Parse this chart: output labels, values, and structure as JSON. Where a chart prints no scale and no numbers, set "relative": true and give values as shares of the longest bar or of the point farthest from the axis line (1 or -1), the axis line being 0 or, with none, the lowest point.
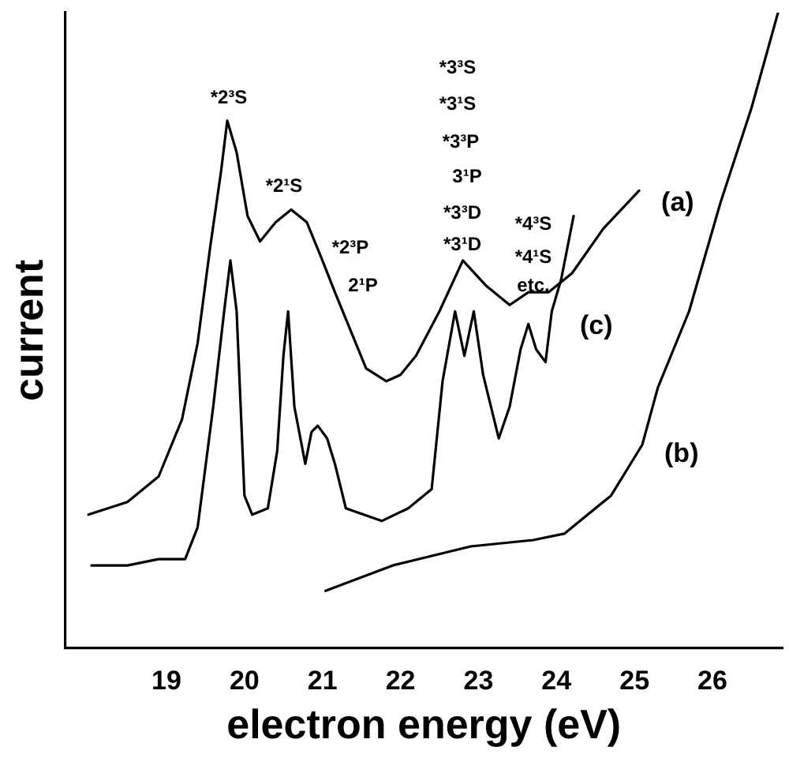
{
  "chart_data": {
    "type": "line",
    "xlabel": "electron energy (eV)",
    "ylabel": "current",
    "relative": true,
    "xlim": [
      17.7,
      26.9
    ],
    "xticks": [
      19,
      20,
      21,
      22,
      23,
      24,
      25,
      26
    ],
    "grid": false,
    "legend": false,
    "marker": "none",
    "line_style": "solid",
    "series": [
      {
        "name": "(a)",
        "color": "#000000",
        "x": [
          18.0,
          18.5,
          18.9,
          19.2,
          19.4,
          19.56,
          19.7,
          19.78,
          19.9,
          20.04,
          20.2,
          20.4,
          20.6,
          20.8,
          21.0,
          21.16,
          21.36,
          21.56,
          21.82,
          22.0,
          22.2,
          22.5,
          22.8,
          23.1,
          23.4,
          23.64,
          23.9,
          24.2,
          24.6,
          25.06
        ],
        "values": [
          0.21,
          0.23,
          0.27,
          0.36,
          0.48,
          0.63,
          0.75,
          0.83,
          0.78,
          0.68,
          0.64,
          0.67,
          0.69,
          0.67,
          0.61,
          0.56,
          0.5,
          0.44,
          0.42,
          0.43,
          0.46,
          0.53,
          0.61,
          0.57,
          0.54,
          0.56,
          0.56,
          0.59,
          0.66,
          0.72
        ]
      },
      {
        "name": "(b)",
        "color": "#000000",
        "x": [
          21.04,
          21.9,
          22.9,
          23.7,
          24.1,
          24.7,
          25.1,
          25.3,
          25.7,
          26.1,
          26.5,
          26.84
        ],
        "values": [
          0.09,
          0.13,
          0.16,
          0.17,
          0.18,
          0.24,
          0.32,
          0.41,
          0.53,
          0.7,
          0.85,
          1.0
        ]
      },
      {
        "name": "(c)",
        "color": "#000000",
        "x": [
          18.04,
          18.5,
          18.9,
          19.24,
          19.4,
          19.6,
          19.74,
          19.82,
          19.9,
          20.0,
          20.1,
          20.3,
          20.42,
          20.5,
          20.56,
          20.64,
          20.78,
          20.86,
          20.94,
          21.06,
          21.16,
          21.3,
          21.76,
          22.1,
          22.4,
          22.54,
          22.7,
          22.82,
          22.94,
          23.06,
          23.26,
          23.4,
          23.54,
          23.64,
          23.74,
          23.86,
          23.94,
          24.06,
          24.22
        ],
        "values": [
          0.13,
          0.13,
          0.14,
          0.14,
          0.19,
          0.38,
          0.53,
          0.61,
          0.53,
          0.24,
          0.21,
          0.22,
          0.31,
          0.46,
          0.53,
          0.38,
          0.29,
          0.34,
          0.35,
          0.33,
          0.29,
          0.22,
          0.2,
          0.22,
          0.25,
          0.42,
          0.53,
          0.46,
          0.53,
          0.43,
          0.33,
          0.38,
          0.47,
          0.51,
          0.47,
          0.45,
          0.53,
          0.58,
          0.68
        ]
      }
    ],
    "annotations": [
      "*2³S",
      "*2¹S",
      "*2³P",
      "2¹P",
      "*3³S",
      "*3¹S",
      "*3³P",
      "3¹P",
      "*3³D",
      "*3¹D",
      "*4³S",
      "*4¹S",
      "etc."
    ]
  }
}
